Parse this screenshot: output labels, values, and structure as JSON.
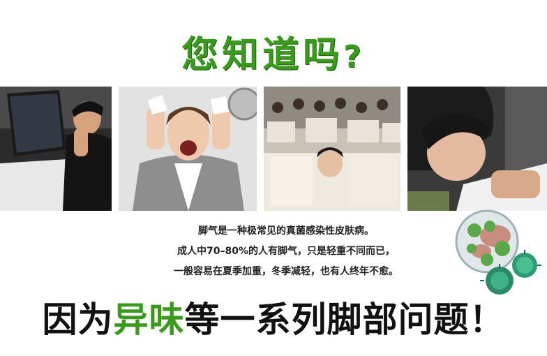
{
  "headline": {
    "text": "您知道吗",
    "mark": "?"
  },
  "body_lines": [
    "脚气是一种极常见的真菌感染性皮肤病。",
    "成人中70–80%的人有脚气，只是轻重不同而已，",
    "一般容易在夏季加重，冬季减轻，也有人终年不愈。"
  ],
  "bottom": {
    "prefix": "因为",
    "highlight": "异味",
    "suffix": "等一系列脚部问题！"
  },
  "colors": {
    "green": "#3a9a1e",
    "dark": "#111111"
  }
}
